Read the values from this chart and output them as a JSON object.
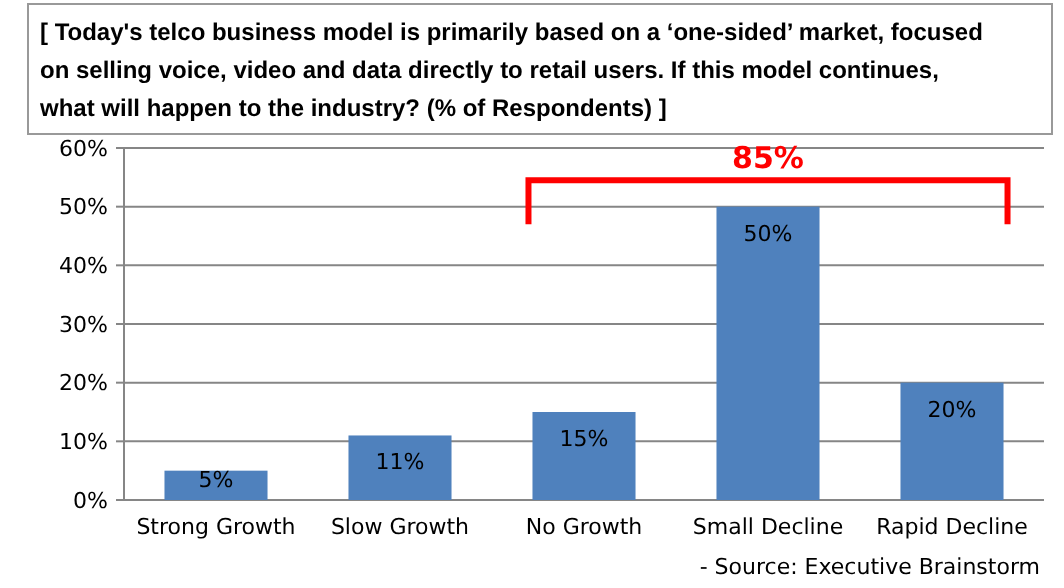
{
  "chart_data": {
    "type": "bar",
    "title": "[ Today's telco business model is primarily based on a ‘one-sided’ market, focused on selling voice, video and data directly to retail users. If this model continues, what will happen to the industry? (% of Respondents) ]",
    "categories": [
      "Strong Growth",
      "Slow Growth",
      "No Growth",
      "Small Decline",
      "Rapid Decline"
    ],
    "values": [
      5,
      11,
      15,
      50,
      20
    ],
    "color": "#4f81bd",
    "ylim": [
      0,
      60
    ],
    "yticks": [
      {
        "value": 0,
        "label": "0%"
      },
      {
        "value": 10,
        "label": "10%"
      },
      {
        "value": 20,
        "label": "20%"
      },
      {
        "value": 30,
        "label": "30%"
      },
      {
        "value": 40,
        "label": "40%"
      },
      {
        "value": 50,
        "label": "50%"
      },
      {
        "value": 60,
        "label": "60%"
      }
    ],
    "grid": "y",
    "value_labels": [
      "5%",
      "11%",
      "15%",
      "50%",
      "20%"
    ],
    "annotations": [
      "85%",
      "- Source: Executive Brainstorm"
    ]
  }
}
